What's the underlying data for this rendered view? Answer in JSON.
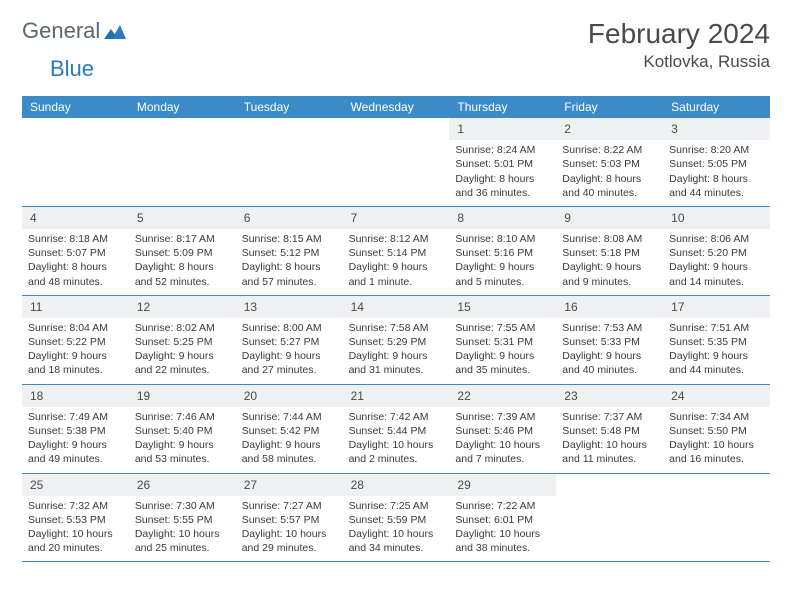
{
  "brand": {
    "part1": "General",
    "part2": "Blue"
  },
  "title": "February 2024",
  "location": "Kotlovka, Russia",
  "colors": {
    "header_bg": "#3b8bc9",
    "daynum_bg": "#eef0f1",
    "border": "#3b8bc9",
    "text": "#3a3a3a",
    "brand_gray": "#5c6670",
    "brand_blue": "#2a7abf"
  },
  "daysOfWeek": [
    "Sunday",
    "Monday",
    "Tuesday",
    "Wednesday",
    "Thursday",
    "Friday",
    "Saturday"
  ],
  "weeks": [
    [
      {
        "n": "",
        "sr": "",
        "ss": "",
        "dl": ""
      },
      {
        "n": "",
        "sr": "",
        "ss": "",
        "dl": ""
      },
      {
        "n": "",
        "sr": "",
        "ss": "",
        "dl": ""
      },
      {
        "n": "",
        "sr": "",
        "ss": "",
        "dl": ""
      },
      {
        "n": "1",
        "sr": "Sunrise: 8:24 AM",
        "ss": "Sunset: 5:01 PM",
        "dl": "Daylight: 8 hours and 36 minutes."
      },
      {
        "n": "2",
        "sr": "Sunrise: 8:22 AM",
        "ss": "Sunset: 5:03 PM",
        "dl": "Daylight: 8 hours and 40 minutes."
      },
      {
        "n": "3",
        "sr": "Sunrise: 8:20 AM",
        "ss": "Sunset: 5:05 PM",
        "dl": "Daylight: 8 hours and 44 minutes."
      }
    ],
    [
      {
        "n": "4",
        "sr": "Sunrise: 8:18 AM",
        "ss": "Sunset: 5:07 PM",
        "dl": "Daylight: 8 hours and 48 minutes."
      },
      {
        "n": "5",
        "sr": "Sunrise: 8:17 AM",
        "ss": "Sunset: 5:09 PM",
        "dl": "Daylight: 8 hours and 52 minutes."
      },
      {
        "n": "6",
        "sr": "Sunrise: 8:15 AM",
        "ss": "Sunset: 5:12 PM",
        "dl": "Daylight: 8 hours and 57 minutes."
      },
      {
        "n": "7",
        "sr": "Sunrise: 8:12 AM",
        "ss": "Sunset: 5:14 PM",
        "dl": "Daylight: 9 hours and 1 minute."
      },
      {
        "n": "8",
        "sr": "Sunrise: 8:10 AM",
        "ss": "Sunset: 5:16 PM",
        "dl": "Daylight: 9 hours and 5 minutes."
      },
      {
        "n": "9",
        "sr": "Sunrise: 8:08 AM",
        "ss": "Sunset: 5:18 PM",
        "dl": "Daylight: 9 hours and 9 minutes."
      },
      {
        "n": "10",
        "sr": "Sunrise: 8:06 AM",
        "ss": "Sunset: 5:20 PM",
        "dl": "Daylight: 9 hours and 14 minutes."
      }
    ],
    [
      {
        "n": "11",
        "sr": "Sunrise: 8:04 AM",
        "ss": "Sunset: 5:22 PM",
        "dl": "Daylight: 9 hours and 18 minutes."
      },
      {
        "n": "12",
        "sr": "Sunrise: 8:02 AM",
        "ss": "Sunset: 5:25 PM",
        "dl": "Daylight: 9 hours and 22 minutes."
      },
      {
        "n": "13",
        "sr": "Sunrise: 8:00 AM",
        "ss": "Sunset: 5:27 PM",
        "dl": "Daylight: 9 hours and 27 minutes."
      },
      {
        "n": "14",
        "sr": "Sunrise: 7:58 AM",
        "ss": "Sunset: 5:29 PM",
        "dl": "Daylight: 9 hours and 31 minutes."
      },
      {
        "n": "15",
        "sr": "Sunrise: 7:55 AM",
        "ss": "Sunset: 5:31 PM",
        "dl": "Daylight: 9 hours and 35 minutes."
      },
      {
        "n": "16",
        "sr": "Sunrise: 7:53 AM",
        "ss": "Sunset: 5:33 PM",
        "dl": "Daylight: 9 hours and 40 minutes."
      },
      {
        "n": "17",
        "sr": "Sunrise: 7:51 AM",
        "ss": "Sunset: 5:35 PM",
        "dl": "Daylight: 9 hours and 44 minutes."
      }
    ],
    [
      {
        "n": "18",
        "sr": "Sunrise: 7:49 AM",
        "ss": "Sunset: 5:38 PM",
        "dl": "Daylight: 9 hours and 49 minutes."
      },
      {
        "n": "19",
        "sr": "Sunrise: 7:46 AM",
        "ss": "Sunset: 5:40 PM",
        "dl": "Daylight: 9 hours and 53 minutes."
      },
      {
        "n": "20",
        "sr": "Sunrise: 7:44 AM",
        "ss": "Sunset: 5:42 PM",
        "dl": "Daylight: 9 hours and 58 minutes."
      },
      {
        "n": "21",
        "sr": "Sunrise: 7:42 AM",
        "ss": "Sunset: 5:44 PM",
        "dl": "Daylight: 10 hours and 2 minutes."
      },
      {
        "n": "22",
        "sr": "Sunrise: 7:39 AM",
        "ss": "Sunset: 5:46 PM",
        "dl": "Daylight: 10 hours and 7 minutes."
      },
      {
        "n": "23",
        "sr": "Sunrise: 7:37 AM",
        "ss": "Sunset: 5:48 PM",
        "dl": "Daylight: 10 hours and 11 minutes."
      },
      {
        "n": "24",
        "sr": "Sunrise: 7:34 AM",
        "ss": "Sunset: 5:50 PM",
        "dl": "Daylight: 10 hours and 16 minutes."
      }
    ],
    [
      {
        "n": "25",
        "sr": "Sunrise: 7:32 AM",
        "ss": "Sunset: 5:53 PM",
        "dl": "Daylight: 10 hours and 20 minutes."
      },
      {
        "n": "26",
        "sr": "Sunrise: 7:30 AM",
        "ss": "Sunset: 5:55 PM",
        "dl": "Daylight: 10 hours and 25 minutes."
      },
      {
        "n": "27",
        "sr": "Sunrise: 7:27 AM",
        "ss": "Sunset: 5:57 PM",
        "dl": "Daylight: 10 hours and 29 minutes."
      },
      {
        "n": "28",
        "sr": "Sunrise: 7:25 AM",
        "ss": "Sunset: 5:59 PM",
        "dl": "Daylight: 10 hours and 34 minutes."
      },
      {
        "n": "29",
        "sr": "Sunrise: 7:22 AM",
        "ss": "Sunset: 6:01 PM",
        "dl": "Daylight: 10 hours and 38 minutes."
      },
      {
        "n": "",
        "sr": "",
        "ss": "",
        "dl": ""
      },
      {
        "n": "",
        "sr": "",
        "ss": "",
        "dl": ""
      }
    ]
  ]
}
